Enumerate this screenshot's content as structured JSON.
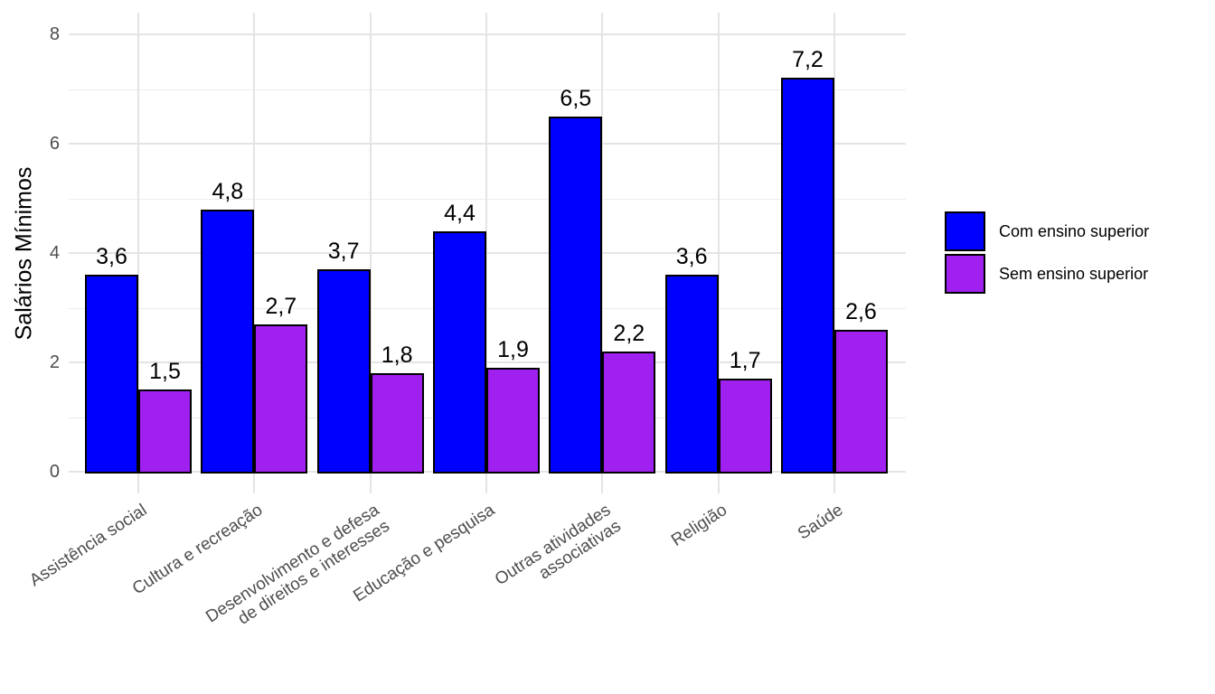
{
  "chart_data": {
    "type": "bar",
    "title": "",
    "ylabel": "Salários Mínimos",
    "xlabel": "",
    "ylim": [
      0,
      8.4
    ],
    "ytick_labels": [
      "0",
      "2",
      "4",
      "6",
      "8"
    ],
    "ytick_values": [
      0,
      2,
      4,
      6,
      8
    ],
    "yminor_values": [
      1,
      3,
      5,
      7
    ],
    "grid": true,
    "legend_position": "right",
    "categories": [
      "Assistência social",
      "Cultura e recreação",
      "Desenvolvimento e defesa\nde direitos e interesses",
      "Educação e pesquisa",
      "Outras atividades\nassociativas",
      "Religião",
      "Saúde"
    ],
    "series": [
      {
        "name": "Com ensino superior",
        "color": "#0000FF",
        "values": [
          3.6,
          4.8,
          3.7,
          4.4,
          6.5,
          3.6,
          7.2
        ],
        "labels": [
          "3,6",
          "4,8",
          "3,7",
          "4,4",
          "6,5",
          "3,6",
          "7,2"
        ]
      },
      {
        "name": "Sem ensino superior",
        "color": "#A020F0",
        "values": [
          1.5,
          2.7,
          1.8,
          1.9,
          2.2,
          1.7,
          2.6
        ],
        "labels": [
          "1,5",
          "2,7",
          "1,8",
          "1,9",
          "2,2",
          "1,7",
          "2,6"
        ]
      }
    ],
    "bar_outline_color": "#000000",
    "grid_color": "#E4E4E4",
    "axis_text_color": "#4D4D4D"
  }
}
